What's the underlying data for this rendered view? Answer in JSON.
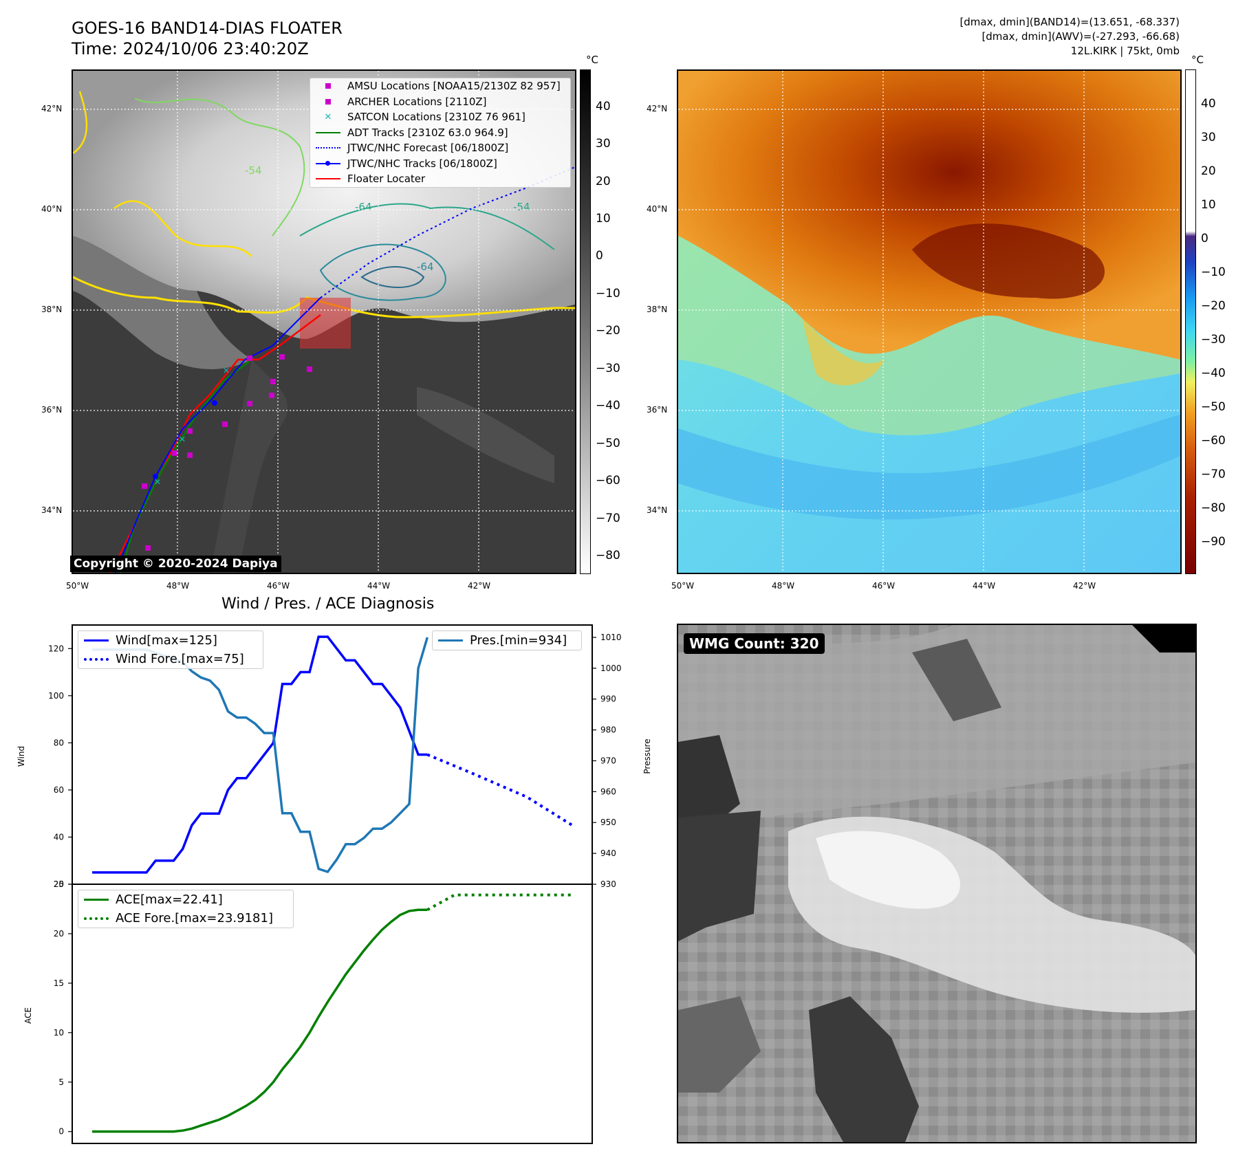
{
  "header": {
    "title_line1": "GOES-16 BAND14-DIAS FLOATER",
    "title_line2": "Time: 2024/10/06 23:40:20Z",
    "meta_line1": "[dmax, dmin](BAND14)=(13.651, -68.337)",
    "meta_line2": "[dmax, dmin](AWV)=(-27.293, -66.68)",
    "meta_line3": "12L.KIRK | 75kt, 0mb"
  },
  "maps": {
    "lat_labels": [
      "42°N",
      "40°N",
      "38°N",
      "36°N",
      "34°N"
    ],
    "lon_labels": [
      "50°W",
      "48°W",
      "46°W",
      "44°W",
      "42°W"
    ],
    "contour_labels": [
      "-54",
      "-64",
      "-54",
      "-64"
    ],
    "copyright": "Copyright © 2020-2024 Dapiya",
    "unit": "°C",
    "left_colorbar_ticks": [
      "40",
      "30",
      "20",
      "10",
      "0",
      "−10",
      "−20",
      "−30",
      "−40",
      "−50",
      "−60",
      "−70",
      "−80"
    ],
    "right_colorbar_ticks": [
      "40",
      "30",
      "20",
      "10",
      "0",
      "−10",
      "−20",
      "−30",
      "−40",
      "−50",
      "−60",
      "−70",
      "−80",
      "−90"
    ],
    "legend": [
      {
        "label": "AMSU Locations [NOAA15/2130Z 82 957]",
        "color": "#cc00cc",
        "marker": "square"
      },
      {
        "label": "ARCHER Locations [2110Z]",
        "color": "#cc00cc",
        "marker": "square"
      },
      {
        "label": "SATCON Locations [2310Z 76 961]",
        "color": "#18b8b8",
        "marker": "x"
      },
      {
        "label": "ADT Tracks [2310Z 63.0 964.9]",
        "color": "#008000",
        "marker": "line"
      },
      {
        "label": "JTWC/NHC Forecast [06/1800Z]",
        "color": "#0000ff",
        "marker": "dotted"
      },
      {
        "label": "JTWC/NHC Tracks [06/1800Z]",
        "color": "#0000ff",
        "marker": "line-dot"
      },
      {
        "label": "Floater Locater",
        "color": "#ff0000",
        "marker": "line"
      }
    ]
  },
  "diagnosis": {
    "title": "Wind / Pres. / ACE Diagnosis",
    "wind_ylabel": "Wind",
    "pressure_ylabel": "Pressure",
    "ace_ylabel": "ACE",
    "wind_ticks": [
      "120",
      "100",
      "80",
      "60",
      "40",
      "20"
    ],
    "pressure_ticks": [
      "1010",
      "1000",
      "990",
      "980",
      "970",
      "960",
      "950",
      "940",
      "930"
    ],
    "ace_ticks": [
      "25",
      "20",
      "15",
      "10",
      "5",
      "0"
    ],
    "legend_wind": "Wind[max=125]",
    "legend_wind_fore": "Wind Fore.[max=75]",
    "legend_pres": "Pres.[min=934]",
    "legend_ace": "ACE[max=22.41]",
    "legend_ace_fore": "ACE Fore.[max=23.9181]"
  },
  "wmg": {
    "label": "WMG Count: 320"
  },
  "chart_data": [
    {
      "type": "line",
      "title": "Wind / Pres. / ACE Diagnosis",
      "ylabel": "Wind",
      "ylim": [
        20,
        130
      ],
      "series": [
        {
          "name": "Wind[max=125]",
          "color": "#0000ff",
          "style": "solid",
          "x": [
            0,
            1,
            2,
            3,
            4,
            5,
            6,
            7,
            8,
            9,
            10,
            11,
            12,
            13,
            14,
            15,
            16,
            17,
            18,
            19,
            20,
            21,
            22,
            23,
            24,
            25,
            26,
            27,
            28,
            29,
            30,
            31,
            32,
            33,
            34,
            35,
            36,
            37
          ],
          "values": [
            25,
            25,
            25,
            25,
            25,
            25,
            25,
            30,
            30,
            30,
            35,
            45,
            50,
            50,
            50,
            60,
            65,
            65,
            70,
            75,
            80,
            105,
            105,
            110,
            110,
            125,
            125,
            120,
            115,
            115,
            110,
            105,
            105,
            100,
            95,
            85,
            75,
            75
          ]
        },
        {
          "name": "Wind Fore.[max=75]",
          "color": "#0000ff",
          "style": "dotted",
          "x": [
            37,
            42,
            48,
            53
          ],
          "values": [
            75,
            67,
            57,
            45
          ]
        }
      ]
    },
    {
      "type": "line",
      "ylabel": "Pressure",
      "ylim": [
        930,
        1014
      ],
      "series": [
        {
          "name": "Pres.[min=934]",
          "color": "#1f77b4",
          "style": "solid",
          "x": [
            0,
            1,
            2,
            3,
            4,
            5,
            6,
            7,
            8,
            9,
            10,
            11,
            12,
            13,
            14,
            15,
            16,
            17,
            18,
            19,
            20,
            21,
            22,
            23,
            24,
            25,
            26,
            27,
            28,
            29,
            30,
            31,
            32,
            33,
            34,
            35,
            36,
            37
          ],
          "values": [
            1006,
            1006,
            1006,
            1006,
            1006,
            1006,
            1006,
            1005,
            1004,
            1003,
            1002,
            999,
            997,
            996,
            993,
            986,
            984,
            984,
            982,
            979,
            979,
            953,
            953,
            947,
            947,
            935,
            934,
            938,
            943,
            943,
            945,
            948,
            948,
            950,
            953,
            956,
            1000,
            1010
          ]
        }
      ]
    },
    {
      "type": "line",
      "ylabel": "ACE",
      "ylim": [
        -1.2,
        25
      ],
      "series": [
        {
          "name": "ACE[max=22.41]",
          "color": "#008000",
          "style": "solid",
          "x": [
            0,
            1,
            2,
            3,
            4,
            5,
            6,
            7,
            8,
            9,
            10,
            11,
            12,
            13,
            14,
            15,
            16,
            17,
            18,
            19,
            20,
            21,
            22,
            23,
            24,
            25,
            26,
            27,
            28,
            29,
            30,
            31,
            32,
            33,
            34,
            35,
            36,
            37
          ],
          "values": [
            0,
            0,
            0,
            0,
            0,
            0,
            0,
            0,
            0,
            0,
            0.1,
            0.3,
            0.6,
            0.9,
            1.2,
            1.6,
            2.1,
            2.6,
            3.2,
            4.0,
            5.0,
            6.3,
            7.4,
            8.6,
            10.0,
            11.6,
            13.1,
            14.5,
            15.9,
            17.1,
            18.3,
            19.4,
            20.4,
            21.2,
            21.9,
            22.3,
            22.41,
            22.41
          ]
        },
        {
          "name": "ACE Fore.[max=23.9181]",
          "color": "#008000",
          "style": "dotted",
          "x": [
            37,
            40,
            48,
            53
          ],
          "values": [
            22.41,
            23.9181,
            23.9181,
            23.9181
          ]
        }
      ]
    }
  ]
}
